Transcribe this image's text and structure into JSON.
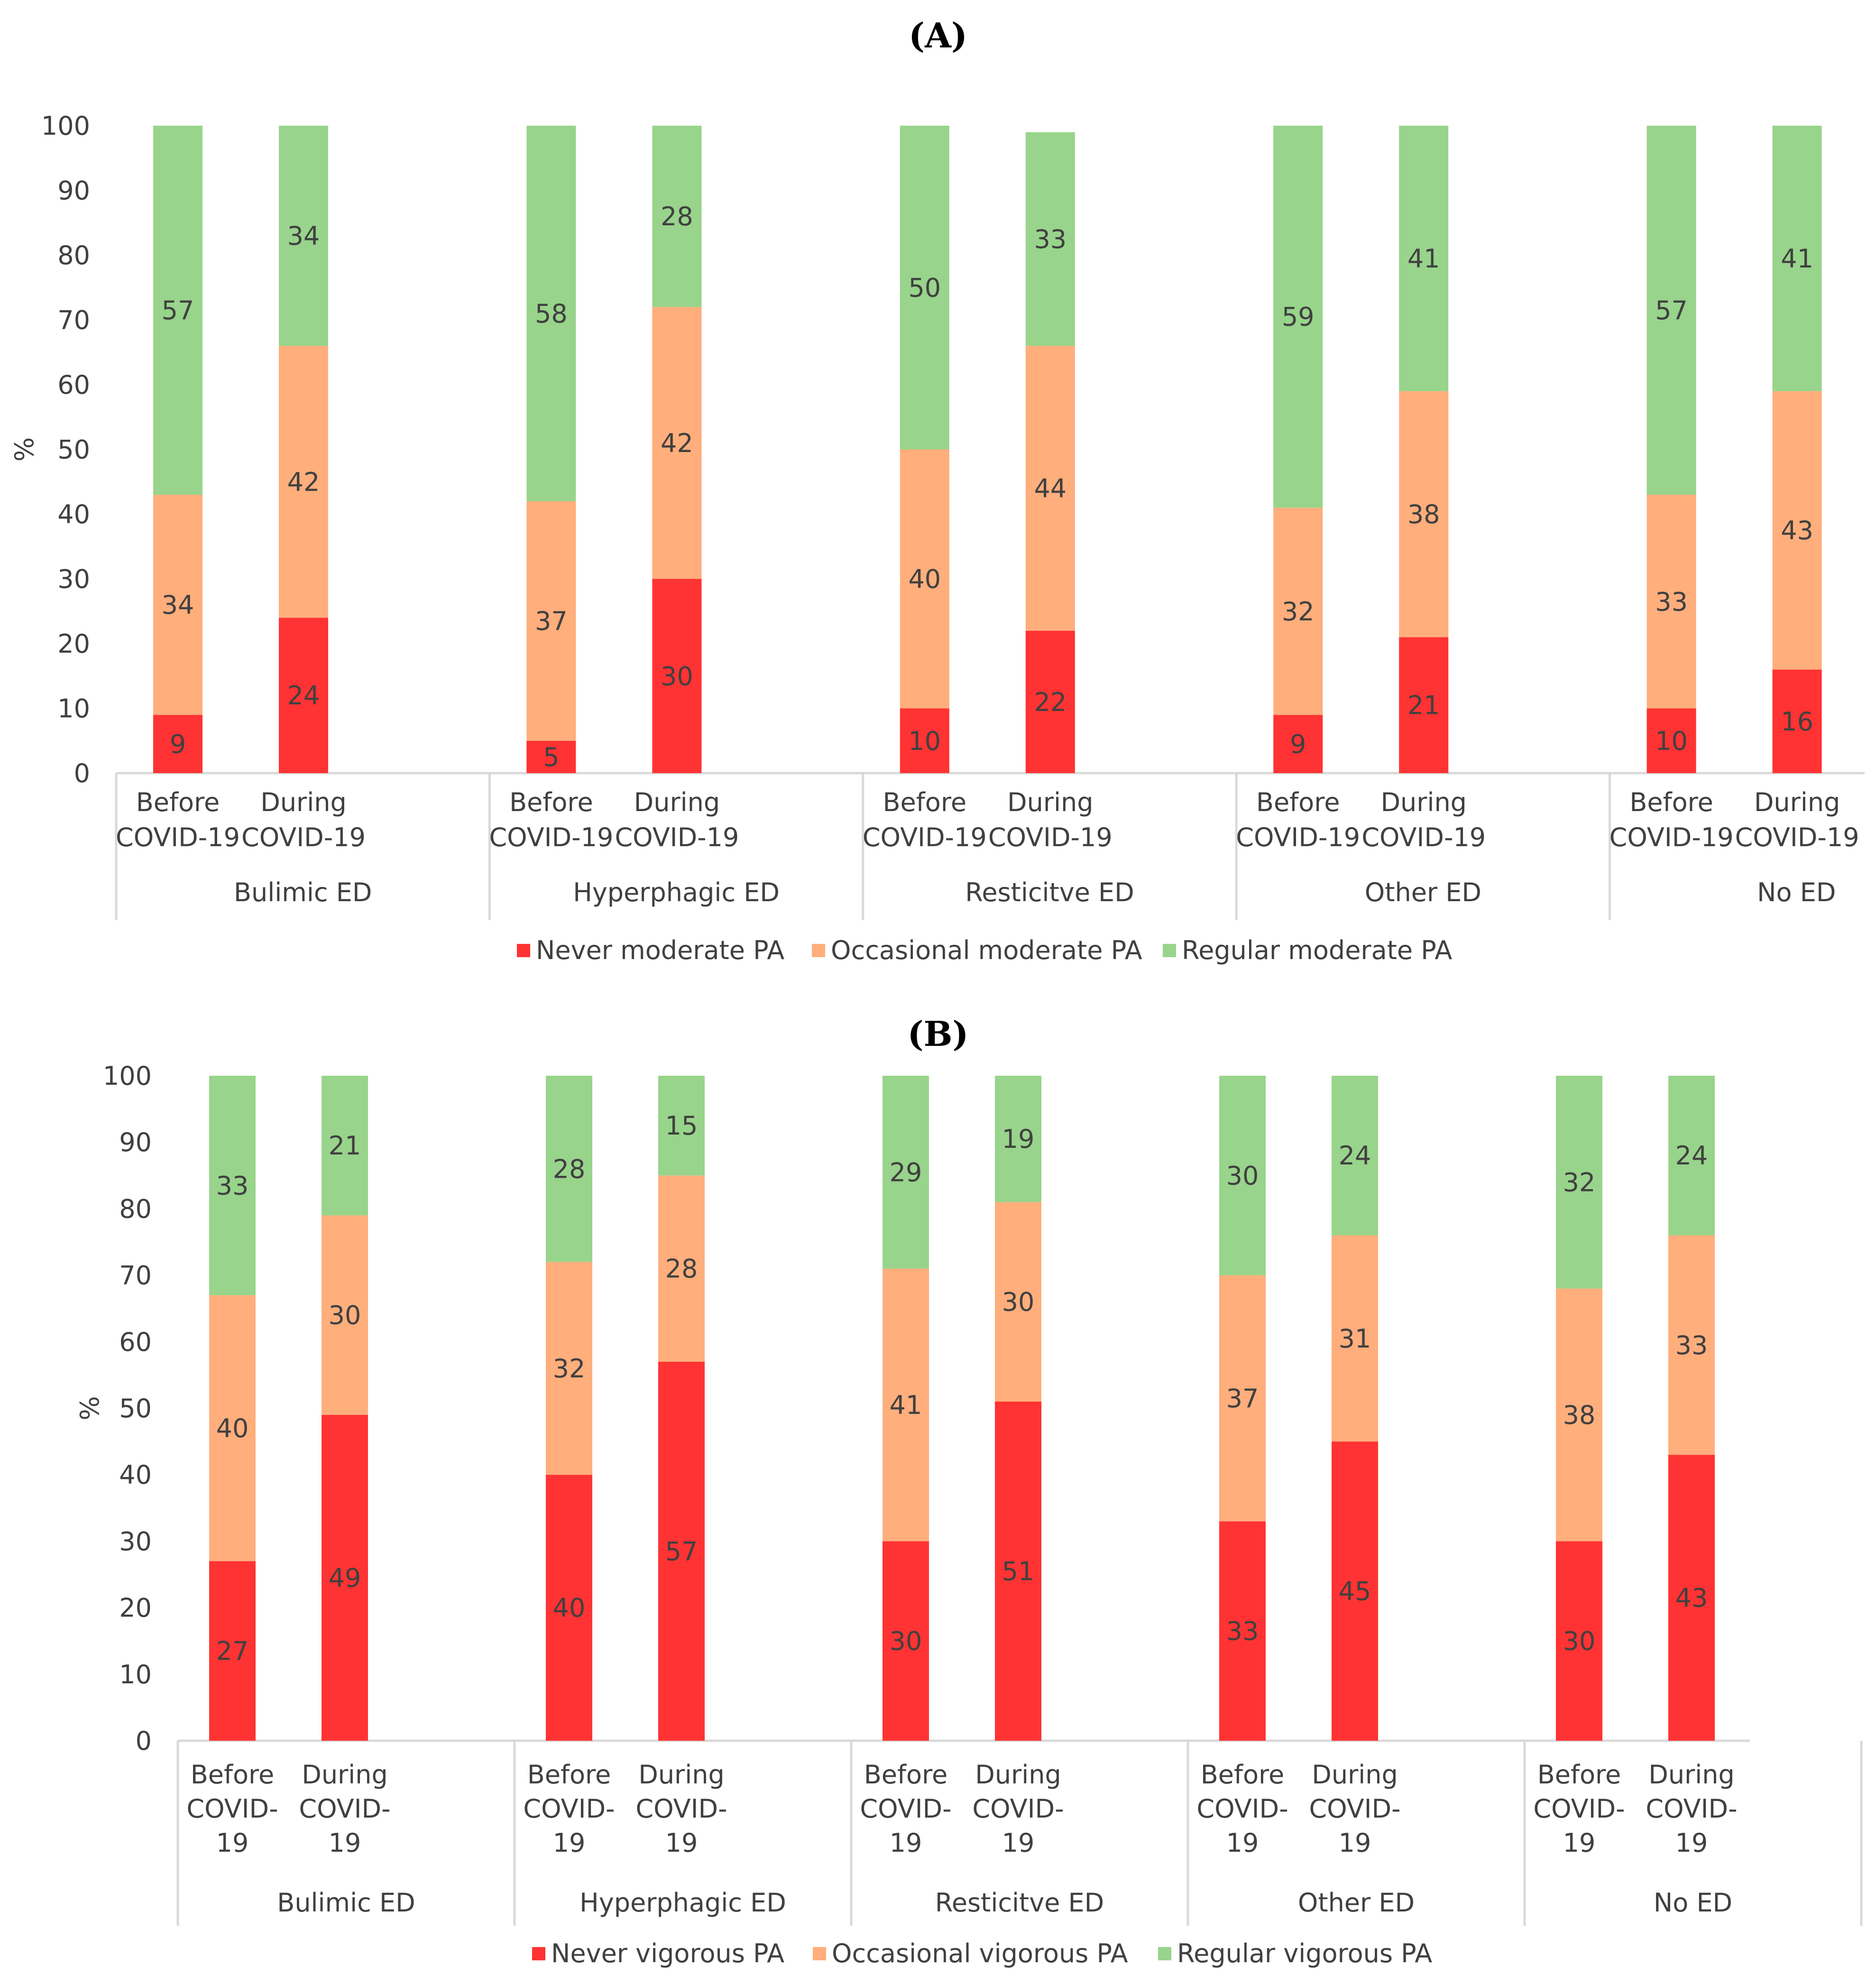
{
  "chart_data": [
    {
      "type": "bar",
      "stacked": true,
      "title": "(A)",
      "ylabel": "%",
      "ylim": [
        0,
        100
      ],
      "yticks": [
        "0",
        "10",
        "20",
        "30",
        "40",
        "50",
        "60",
        "70",
        "80",
        "90",
        "100"
      ],
      "groups": [
        "Bulimic ED",
        "Hyperphagic ED",
        "Resticitve ED",
        "Other ED",
        "No ED"
      ],
      "categories": [
        [
          "Before",
          "COVID-19"
        ],
        [
          "During",
          "COVID-19"
        ]
      ],
      "series": [
        {
          "name": "Never moderate PA",
          "color": "#ff3333",
          "values": [
            [
              9,
              24
            ],
            [
              5,
              30
            ],
            [
              10,
              22
            ],
            [
              9,
              21
            ],
            [
              10,
              16
            ]
          ]
        },
        {
          "name": "Occasional moderate PA",
          "color": "#ffae7c",
          "values": [
            [
              34,
              42
            ],
            [
              37,
              42
            ],
            [
              40,
              44
            ],
            [
              32,
              38
            ],
            [
              33,
              43
            ]
          ]
        },
        {
          "name": "Regular moderate PA",
          "color": "#98d48b",
          "values": [
            [
              57,
              34
            ],
            [
              58,
              28
            ],
            [
              50,
              33
            ],
            [
              59,
              41
            ],
            [
              57,
              41
            ]
          ]
        }
      ],
      "legend_position": "bottom"
    },
    {
      "type": "bar",
      "stacked": true,
      "title": "(B)",
      "ylabel": "%",
      "ylim": [
        0,
        100
      ],
      "yticks": [
        "0",
        "10",
        "20",
        "30",
        "40",
        "50",
        "60",
        "70",
        "80",
        "90",
        "100"
      ],
      "groups": [
        "Bulimic ED",
        "Hyperphagic ED",
        "Resticitve ED",
        "Other ED",
        "No ED"
      ],
      "categories": [
        [
          "Before",
          "COVID-",
          "19"
        ],
        [
          "During",
          "COVID-",
          "19"
        ]
      ],
      "series": [
        {
          "name": "Never vigorous PA",
          "color": "#ff3333",
          "values": [
            [
              27,
              49
            ],
            [
              40,
              57
            ],
            [
              30,
              51
            ],
            [
              33,
              45
            ],
            [
              30,
              43
            ]
          ]
        },
        {
          "name": "Occasional vigorous PA",
          "color": "#ffae7c",
          "values": [
            [
              40,
              30
            ],
            [
              32,
              28
            ],
            [
              41,
              30
            ],
            [
              37,
              31
            ],
            [
              38,
              33
            ]
          ]
        },
        {
          "name": "Regular vigorous PA",
          "color": "#98d48b",
          "values": [
            [
              33,
              21
            ],
            [
              28,
              15
            ],
            [
              29,
              19
            ],
            [
              30,
              24
            ],
            [
              32,
              24
            ]
          ]
        }
      ],
      "legend_position": "bottom"
    }
  ]
}
